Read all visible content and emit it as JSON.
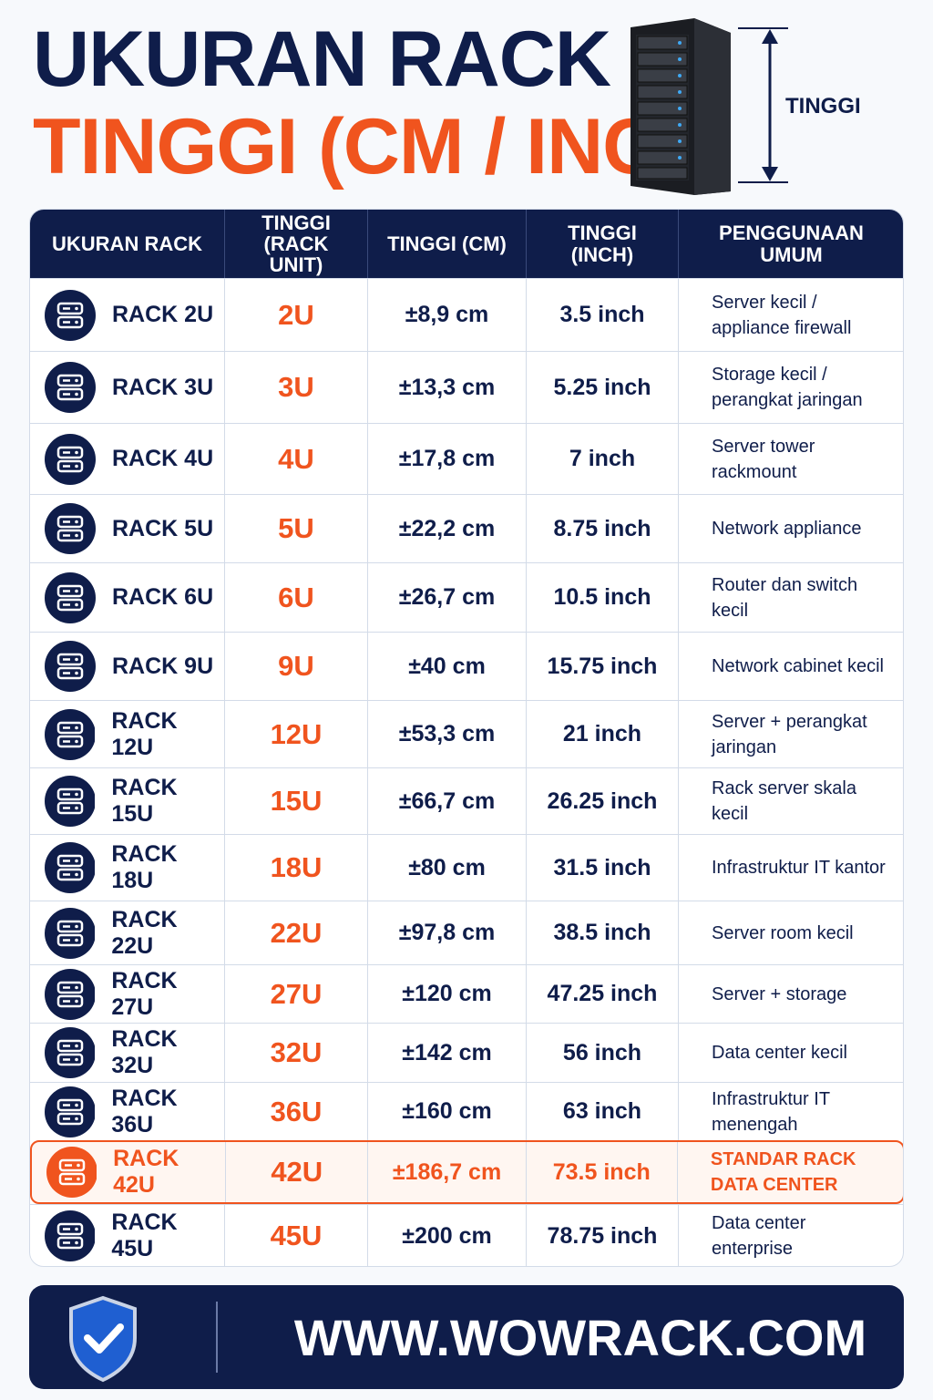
{
  "header": {
    "title_line1": "UKURAN RACK",
    "title_line2": "TINGGI (CM / INC)",
    "image_label": "TINGGI"
  },
  "table": {
    "headers": [
      "UKURAN RACK",
      "TINGGI (RACK UNIT)",
      "TINGGI (CM)",
      "TINGGI (INCH)",
      "PENGGUNAAN UMUM"
    ],
    "highlight_row": 13,
    "rows": [
      [
        "RACK 2U",
        "2U",
        "±8,9 cm",
        "3.5 inch",
        "Server kecil / appliance firewall"
      ],
      [
        "RACK 3U",
        "3U",
        "±13,3 cm",
        "5.25 inch",
        "Storage kecil / perangkat jaringan"
      ],
      [
        "RACK 4U",
        "4U",
        "±17,8 cm",
        "7 inch",
        "Server tower rackmount"
      ],
      [
        "RACK 5U",
        "5U",
        "±22,2 cm",
        "8.75 inch",
        "Network appliance"
      ],
      [
        "RACK 6U",
        "6U",
        "±26,7 cm",
        "10.5 inch",
        "Router dan switch kecil"
      ],
      [
        "RACK 9U",
        "9U",
        "±40 cm",
        "15.75 inch",
        "Network cabinet kecil"
      ],
      [
        "RACK 12U",
        "12U",
        "±53,3 cm",
        "21 inch",
        "Server + perangkat jaringan"
      ],
      [
        "RACK 15U",
        "15U",
        "±66,7 cm",
        "26.25 inch",
        "Rack server skala kecil"
      ],
      [
        "RACK 18U",
        "18U",
        "±80 cm",
        "31.5 inch",
        "Infrastruktur IT kantor"
      ],
      [
        "RACK 22U",
        "22U",
        "±97,8 cm",
        "38.5 inch",
        "Server room kecil"
      ],
      [
        "RACK 27U",
        "27U",
        "±120 cm",
        "47.25 inch",
        "Server + storage"
      ],
      [
        "RACK 32U",
        "32U",
        "±142 cm",
        "56 inch",
        "Data center kecil"
      ],
      [
        "RACK 36U",
        "36U",
        "±160 cm",
        "63 inch",
        "Infrastruktur IT menengah"
      ],
      [
        "RACK 42U",
        "42U",
        "±186,7 cm",
        "73.5 inch",
        "STANDAR RACK DATA CENTER"
      ],
      [
        "RACK 45U",
        "45U",
        "±200 cm",
        "78.75 inch",
        "Data center enterprise"
      ]
    ]
  },
  "footer": {
    "url": "WWW.WOWRACK.COM"
  }
}
